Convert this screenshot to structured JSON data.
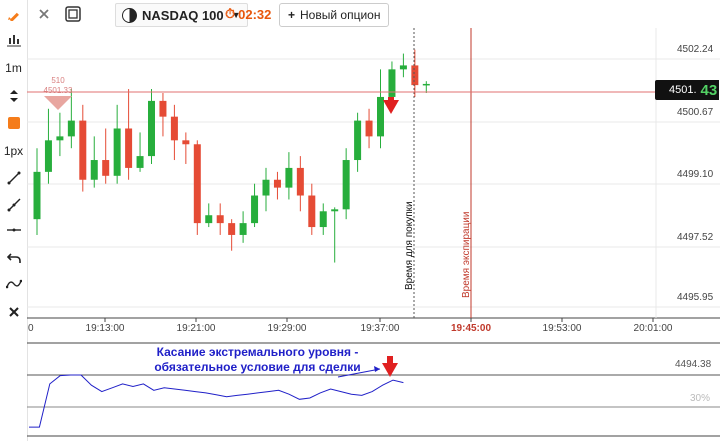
{
  "toolbar": {
    "items": [
      {
        "name": "pencil-icon"
      },
      {
        "name": "candles-icon"
      },
      {
        "label": "1m"
      },
      {
        "name": "updown-icon"
      },
      {
        "name": "orange-square-icon",
        "color": "#f57c1a"
      },
      {
        "label": "1px"
      },
      {
        "name": "line-tool-icon"
      },
      {
        "name": "ray-tool-icon"
      },
      {
        "name": "horizontal-line-icon"
      },
      {
        "name": "undo-icon"
      },
      {
        "name": "wave-icon"
      },
      {
        "name": "close-icon"
      }
    ]
  },
  "topbar": {
    "asset": "NASDAQ 100",
    "timer": "02:32",
    "new_option": "Новый опцион"
  },
  "chart": {
    "y_ticks": [
      "4502.24",
      "4500.67",
      "4499.10",
      "4497.52",
      "4495.95"
    ],
    "x_ticks": [
      "19:13:00",
      "19:21:00",
      "19:29:00",
      "19:37:00",
      "19:45:00",
      "19:53:00",
      "20:01:00"
    ],
    "left_tick_fragment": "0",
    "current_price_small": "4501.",
    "current_price_big": "43",
    "marker_top": "510",
    "marker_bottom": "4501.33",
    "buy_time_label": "Время для покупки",
    "expiry_label": "Время экспирации",
    "osc_value": "4494.38",
    "osc_pct": "30%",
    "candles": [
      {
        "o": 4498.0,
        "c": 4499.2,
        "h": 4499.8,
        "l": 4497.6
      },
      {
        "o": 4499.2,
        "c": 4500.0,
        "h": 4500.8,
        "l": 4498.9
      },
      {
        "o": 4500.0,
        "c": 4500.1,
        "h": 4500.7,
        "l": 4499.6
      },
      {
        "o": 4500.1,
        "c": 4500.5,
        "h": 4501.3,
        "l": 4499.8
      },
      {
        "o": 4500.5,
        "c": 4499.0,
        "h": 4500.9,
        "l": 4498.7
      },
      {
        "o": 4499.0,
        "c": 4499.5,
        "h": 4500.1,
        "l": 4498.8
      },
      {
        "o": 4499.5,
        "c": 4499.1,
        "h": 4500.3,
        "l": 4498.9
      },
      {
        "o": 4499.1,
        "c": 4500.3,
        "h": 4500.9,
        "l": 4498.9
      },
      {
        "o": 4500.3,
        "c": 4499.3,
        "h": 4501.3,
        "l": 4499.0
      },
      {
        "o": 4499.3,
        "c": 4499.6,
        "h": 4500.2,
        "l": 4499.2
      },
      {
        "o": 4499.6,
        "c": 4501.0,
        "h": 4501.3,
        "l": 4499.4
      },
      {
        "o": 4501.0,
        "c": 4500.6,
        "h": 4501.2,
        "l": 4500.1
      },
      {
        "o": 4500.6,
        "c": 4500.0,
        "h": 4500.9,
        "l": 4499.5
      },
      {
        "o": 4500.0,
        "c": 4499.9,
        "h": 4500.2,
        "l": 4499.4
      },
      {
        "o": 4499.9,
        "c": 4497.9,
        "h": 4500.0,
        "l": 4497.6
      },
      {
        "o": 4497.9,
        "c": 4498.1,
        "h": 4498.4,
        "l": 4497.8
      },
      {
        "o": 4498.1,
        "c": 4497.9,
        "h": 4498.4,
        "l": 4497.6
      },
      {
        "o": 4497.9,
        "c": 4497.6,
        "h": 4498.0,
        "l": 4497.2
      },
      {
        "o": 4497.6,
        "c": 4497.9,
        "h": 4498.2,
        "l": 4497.4
      },
      {
        "o": 4497.9,
        "c": 4498.6,
        "h": 4498.9,
        "l": 4497.8
      },
      {
        "o": 4498.6,
        "c": 4499.0,
        "h": 4499.3,
        "l": 4498.2
      },
      {
        "o": 4499.0,
        "c": 4498.8,
        "h": 4499.2,
        "l": 4498.5
      },
      {
        "o": 4498.8,
        "c": 4499.3,
        "h": 4499.7,
        "l": 4498.5
      },
      {
        "o": 4499.3,
        "c": 4498.6,
        "h": 4499.6,
        "l": 4498.2
      },
      {
        "o": 4498.6,
        "c": 4497.8,
        "h": 4498.9,
        "l": 4497.6
      },
      {
        "o": 4497.8,
        "c": 4498.2,
        "h": 4498.4,
        "l": 4497.6
      },
      {
        "o": 4498.2,
        "c": 4498.25,
        "h": 4498.3,
        "l": 4496.9
      },
      {
        "o": 4498.25,
        "c": 4499.5,
        "h": 4499.8,
        "l": 4498.0
      },
      {
        "o": 4499.5,
        "c": 4500.5,
        "h": 4500.7,
        "l": 4499.2
      },
      {
        "o": 4500.5,
        "c": 4500.1,
        "h": 4500.8,
        "l": 4499.8
      },
      {
        "o": 4500.1,
        "c": 4501.1,
        "h": 4501.8,
        "l": 4499.8
      },
      {
        "o": 4501.1,
        "c": 4501.8,
        "h": 4502.0,
        "l": 4500.9
      },
      {
        "o": 4501.8,
        "c": 4501.9,
        "h": 4502.2,
        "l": 4501.6
      },
      {
        "o": 4501.9,
        "c": 4501.4,
        "h": 4502.3,
        "l": 4501.1
      },
      {
        "o": 4501.4,
        "c": 4501.43,
        "h": 4501.5,
        "l": 4501.2
      }
    ],
    "oscillator": [
      4.5,
      4.5,
      72,
      85,
      86,
      86,
      70,
      60,
      66,
      72,
      68,
      72,
      62,
      66,
      64,
      62,
      60,
      58,
      55,
      52,
      54,
      56,
      58,
      60,
      62,
      56,
      48,
      50,
      58,
      64,
      60,
      56,
      54,
      60,
      70,
      78,
      74
    ]
  },
  "annotation": {
    "line1": "Касание экстремального уровня -",
    "line2": "обязательное условие для сделки"
  }
}
